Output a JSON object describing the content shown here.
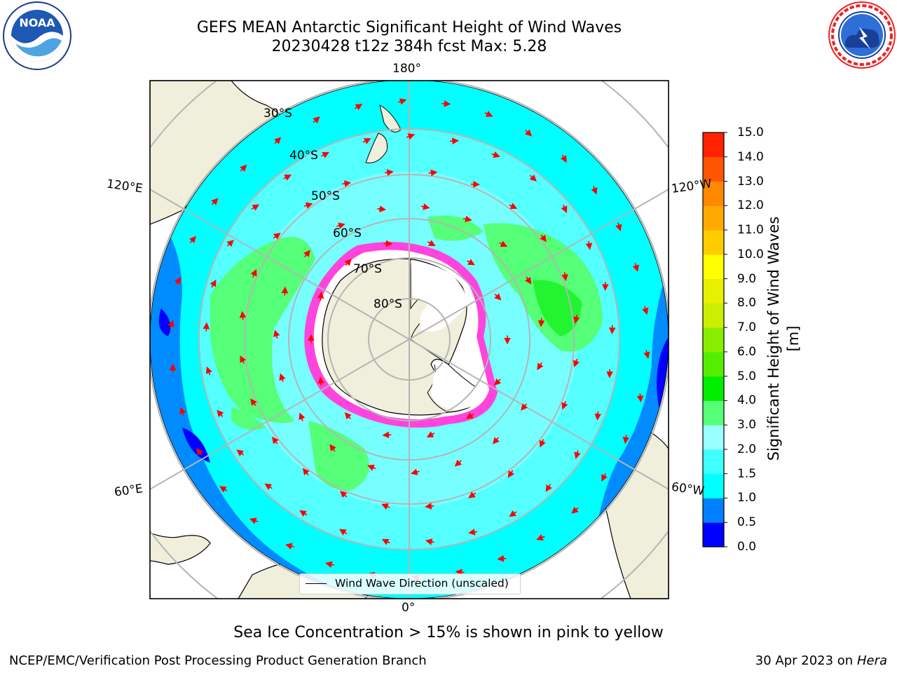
{
  "title": {
    "line1": "GEFS MEAN Antarctic Significant Height of Wind Waves",
    "line2": "20230428 t12z 384h fcst   Max: 5.28"
  },
  "logos": {
    "left": "NOAA",
    "right": "NATIONAL WEATHER SERVICE"
  },
  "map": {
    "projection": "south-polar-stereographic",
    "lon_labels": [
      "180°",
      "120°E",
      "120°W",
      "60°E",
      "60°W",
      "0°"
    ],
    "lat_labels": [
      "30°S",
      "40°S",
      "50°S",
      "60°S",
      "70°S",
      "80°S"
    ],
    "legend": {
      "label": "Wind Wave Direction (unscaled)"
    }
  },
  "colorbar": {
    "label": "Significant Height of Wind Waves [m]",
    "ticks": [
      "15.0",
      "14.0",
      "13.0",
      "12.0",
      "11.0",
      "10.0",
      "9.0",
      "8.0",
      "7.0",
      "6.0",
      "5.0",
      "4.0",
      "3.0",
      "2.0",
      "1.5",
      "1.0",
      "0.5",
      "0.0"
    ],
    "colors": [
      "#0000ff",
      "#0080ff",
      "#00ffff",
      "#40ffff",
      "#99ffff",
      "#55ff77",
      "#00ee00",
      "#55ee00",
      "#88ee00",
      "#ccee00",
      "#e8f000",
      "#ffff00",
      "#ffcc00",
      "#ffaa00",
      "#ff8800",
      "#ff5500",
      "#ff2200"
    ]
  },
  "sea_ice_note": "Sea Ice Concentration > 15% is shown in pink to yellow",
  "footer": {
    "left": "NCEP/EMC/Verification Post Processing Product Generation Branch",
    "right_date": "30 Apr 2023 on ",
    "right_host": "Hera"
  }
}
